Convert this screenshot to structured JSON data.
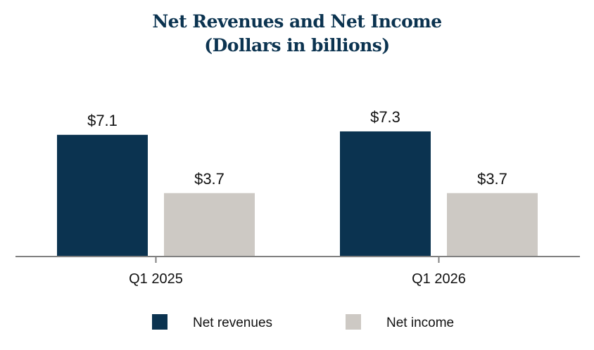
{
  "chart_data": {
    "type": "bar",
    "title": "Net Revenues and Net Income",
    "subtitle": "(Dollars in billions)",
    "categories": [
      "Q1 2025",
      "Q1 2026"
    ],
    "series": [
      {
        "name": "Net revenues",
        "values": [
          7.1,
          7.3
        ],
        "labels": [
          "$7.1",
          "$7.3"
        ],
        "color": "#0b3350"
      },
      {
        "name": "Net income",
        "values": [
          3.7,
          3.7
        ],
        "labels": [
          "$3.7",
          "$3.7"
        ],
        "color": "#cdc9c4"
      }
    ],
    "xlabel": "",
    "ylabel": "",
    "ylim": [
      0,
      8.2
    ],
    "grid": false,
    "legend": "bottom-center"
  },
  "colors": {
    "title": "#0b3350",
    "axis": "#808080"
  }
}
